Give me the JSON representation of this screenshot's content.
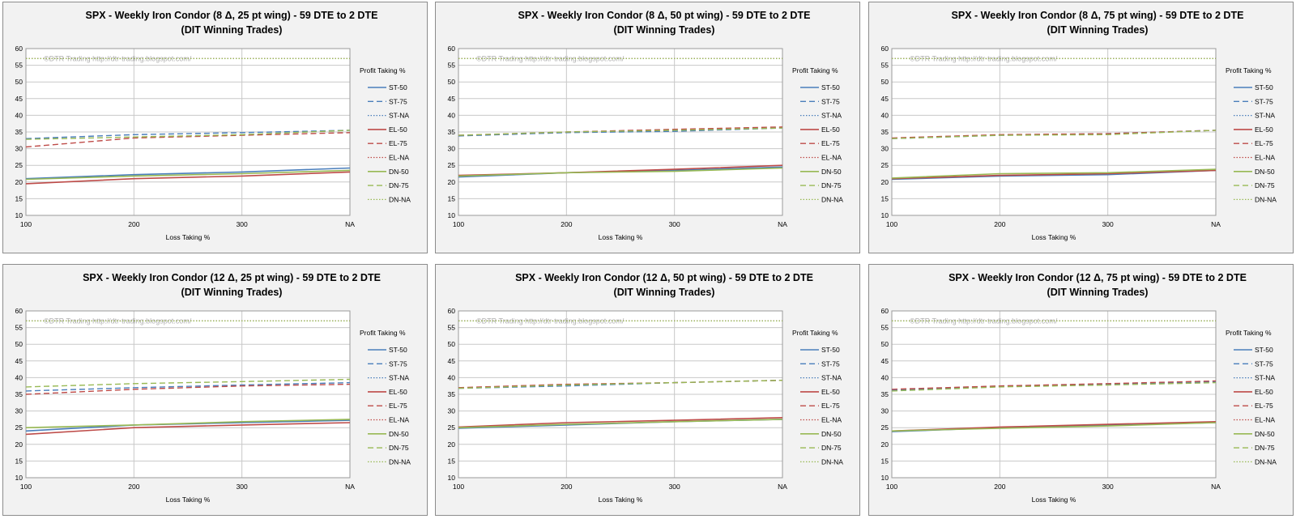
{
  "colors": {
    "ST": "#4a7ebb",
    "EL": "#be4b48",
    "DN": "#98b954",
    "max_line": "#7f7f35",
    "grid": "#c8c8c8",
    "plot_bg": "#ffffff",
    "panel_bg": "#f2f2f2"
  },
  "common": {
    "watermark": "©DTR Trading     http://dtr-trading.blogspot.com/",
    "subtitle": "(DIT Winning Trades)",
    "xlabel": "Loss Taking %",
    "legend_title": "Profit Taking %",
    "categories": [
      "100",
      "200",
      "300",
      "NA"
    ],
    "yticks": [
      10,
      15,
      20,
      25,
      30,
      35,
      40,
      45,
      50,
      55,
      60
    ],
    "ylim": [
      10,
      60
    ]
  },
  "chart_data": [
    {
      "type": "line",
      "title": "SPX - Weekly Iron Condor (8 Δ, 25 pt wing) - 59 DTE to 2 DTE",
      "subtitle": "(DIT Winning Trades)",
      "xlabel": "Loss Taking %",
      "ylabel": "",
      "categories": [
        "100",
        "200",
        "300",
        "NA"
      ],
      "ylim": [
        10,
        60
      ],
      "legend": {
        "title": "Profit Taking %",
        "position": "right"
      },
      "series": [
        {
          "name": "ST-50",
          "values": [
            21.0,
            22.2,
            23.0,
            24.2
          ]
        },
        {
          "name": "ST-75",
          "values": [
            33.0,
            34.2,
            34.8,
            35.5
          ]
        },
        {
          "name": "ST-NA",
          "values": [
            57.0,
            57.0,
            57.0,
            57.0
          ]
        },
        {
          "name": "EL-50",
          "values": [
            19.5,
            21.0,
            21.8,
            23.0
          ]
        },
        {
          "name": "EL-75",
          "values": [
            30.5,
            33.2,
            34.0,
            34.8
          ]
        },
        {
          "name": "EL-NA",
          "values": [
            57.0,
            57.0,
            57.0,
            57.0
          ]
        },
        {
          "name": "DN-50",
          "values": [
            20.8,
            21.8,
            22.5,
            23.5
          ]
        },
        {
          "name": "DN-75",
          "values": [
            32.8,
            33.5,
            34.2,
            35.5
          ]
        },
        {
          "name": "DN-NA",
          "values": [
            57.0,
            57.0,
            57.0,
            57.0
          ]
        }
      ]
    },
    {
      "type": "line",
      "title": "SPX - Weekly Iron Condor (8 Δ, 50 pt wing) - 59 DTE to 2 DTE",
      "subtitle": "(DIT Winning Trades)",
      "xlabel": "Loss Taking %",
      "ylabel": "",
      "categories": [
        "100",
        "200",
        "300",
        "NA"
      ],
      "ylim": [
        10,
        60
      ],
      "legend": {
        "title": "Profit Taking %",
        "position": "right"
      },
      "series": [
        {
          "name": "ST-50",
          "values": [
            21.5,
            22.8,
            23.5,
            24.5
          ]
        },
        {
          "name": "ST-75",
          "values": [
            33.8,
            34.8,
            35.2,
            36.2
          ]
        },
        {
          "name": "ST-NA",
          "values": [
            57.0,
            57.0,
            57.0,
            57.0
          ]
        },
        {
          "name": "EL-50",
          "values": [
            22.0,
            22.8,
            23.8,
            25.0
          ]
        },
        {
          "name": "EL-75",
          "values": [
            34.0,
            35.0,
            35.8,
            36.5
          ]
        },
        {
          "name": "EL-NA",
          "values": [
            57.0,
            57.0,
            57.0,
            57.0
          ]
        },
        {
          "name": "DN-50",
          "values": [
            21.8,
            22.8,
            23.2,
            24.2
          ]
        },
        {
          "name": "DN-75",
          "values": [
            34.0,
            35.0,
            35.5,
            36.2
          ]
        },
        {
          "name": "DN-NA",
          "values": [
            57.0,
            57.0,
            57.0,
            57.0
          ]
        }
      ]
    },
    {
      "type": "line",
      "title": "SPX - Weekly Iron Condor (8 Δ, 75 pt wing) - 59 DTE to 2 DTE",
      "subtitle": "(DIT Winning Trades)",
      "xlabel": "Loss Taking %",
      "ylabel": "",
      "categories": [
        "100",
        "200",
        "300",
        "NA"
      ],
      "ylim": [
        10,
        60
      ],
      "legend": {
        "title": "Profit Taking %",
        "position": "right"
      },
      "series": [
        {
          "name": "ST-50",
          "values": [
            20.8,
            21.8,
            22.2,
            23.5
          ]
        },
        {
          "name": "ST-75",
          "values": [
            33.0,
            34.0,
            34.5,
            35.5
          ]
        },
        {
          "name": "ST-NA",
          "values": [
            57.0,
            57.0,
            57.0,
            57.0
          ]
        },
        {
          "name": "EL-50",
          "values": [
            21.0,
            22.0,
            22.5,
            23.5
          ]
        },
        {
          "name": "EL-75",
          "values": [
            33.2,
            34.2,
            34.5,
            35.5
          ]
        },
        {
          "name": "EL-NA",
          "values": [
            57.0,
            57.0,
            57.0,
            57.0
          ]
        },
        {
          "name": "DN-50",
          "values": [
            21.2,
            22.5,
            22.8,
            23.8
          ]
        },
        {
          "name": "DN-75",
          "values": [
            33.0,
            34.0,
            34.2,
            35.5
          ]
        },
        {
          "name": "DN-NA",
          "values": [
            57.0,
            57.0,
            57.0,
            57.0
          ]
        }
      ]
    },
    {
      "type": "line",
      "title": "SPX - Weekly Iron Condor (12 Δ, 25 pt wing) - 59 DTE to 2 DTE",
      "subtitle": "(DIT Winning Trades)",
      "xlabel": "Loss Taking %",
      "ylabel": "",
      "categories": [
        "100",
        "200",
        "300",
        "NA"
      ],
      "ylim": [
        10,
        60
      ],
      "legend": {
        "title": "Profit Taking %",
        "position": "right"
      },
      "series": [
        {
          "name": "ST-50",
          "values": [
            24.0,
            25.8,
            26.5,
            27.2
          ]
        },
        {
          "name": "ST-75",
          "values": [
            36.0,
            37.0,
            37.8,
            38.5
          ]
        },
        {
          "name": "ST-NA",
          "values": [
            57.0,
            57.0,
            57.0,
            57.0
          ]
        },
        {
          "name": "EL-50",
          "values": [
            23.0,
            25.0,
            25.8,
            26.5
          ]
        },
        {
          "name": "EL-75",
          "values": [
            35.0,
            36.5,
            37.5,
            38.0
          ]
        },
        {
          "name": "EL-NA",
          "values": [
            57.0,
            57.0,
            57.0,
            57.0
          ]
        },
        {
          "name": "DN-50",
          "values": [
            25.0,
            25.8,
            26.8,
            27.5
          ]
        },
        {
          "name": "DN-75",
          "values": [
            37.2,
            38.2,
            38.8,
            39.5
          ]
        },
        {
          "name": "DN-NA",
          "values": [
            57.0,
            57.0,
            57.0,
            57.0
          ]
        }
      ]
    },
    {
      "type": "line",
      "title": "SPX - Weekly Iron Condor (12 Δ, 50 pt wing) - 59 DTE to 2 DTE",
      "subtitle": "(DIT Winning Trades)",
      "xlabel": "Loss Taking %",
      "ylabel": "",
      "categories": [
        "100",
        "200",
        "300",
        "NA"
      ],
      "ylim": [
        10,
        60
      ],
      "legend": {
        "title": "Profit Taking %",
        "position": "right"
      },
      "series": [
        {
          "name": "ST-50",
          "values": [
            24.8,
            25.8,
            26.8,
            27.5
          ]
        },
        {
          "name": "ST-75",
          "values": [
            36.8,
            37.5,
            38.5,
            39.2
          ]
        },
        {
          "name": "ST-NA",
          "values": [
            57.0,
            57.0,
            57.0,
            57.0
          ]
        },
        {
          "name": "EL-50",
          "values": [
            25.2,
            26.5,
            27.2,
            28.0
          ]
        },
        {
          "name": "EL-75",
          "values": [
            37.0,
            38.0,
            38.5,
            39.2
          ]
        },
        {
          "name": "EL-NA",
          "values": [
            57.0,
            57.0,
            57.0,
            57.0
          ]
        },
        {
          "name": "DN-50",
          "values": [
            25.0,
            26.0,
            26.8,
            27.5
          ]
        },
        {
          "name": "DN-75",
          "values": [
            36.8,
            37.8,
            38.5,
            39.2
          ]
        },
        {
          "name": "DN-NA",
          "values": [
            57.0,
            57.0,
            57.0,
            57.0
          ]
        }
      ]
    },
    {
      "type": "line",
      "title": "SPX - Weekly Iron Condor (12 Δ, 75 pt wing) - 59 DTE to 2 DTE",
      "subtitle": "(DIT Winning Trades)",
      "xlabel": "Loss Taking %",
      "ylabel": "",
      "categories": [
        "100",
        "200",
        "300",
        "NA"
      ],
      "ylim": [
        10,
        60
      ],
      "legend": {
        "title": "Profit Taking %",
        "position": "right"
      },
      "series": [
        {
          "name": "ST-50",
          "values": [
            23.8,
            25.0,
            25.8,
            26.5
          ]
        },
        {
          "name": "ST-75",
          "values": [
            36.2,
            37.5,
            38.0,
            38.8
          ]
        },
        {
          "name": "ST-NA",
          "values": [
            57.0,
            57.0,
            57.0,
            57.0
          ]
        },
        {
          "name": "EL-50",
          "values": [
            24.0,
            25.2,
            26.0,
            26.8
          ]
        },
        {
          "name": "EL-75",
          "values": [
            36.5,
            37.5,
            38.2,
            39.0
          ]
        },
        {
          "name": "EL-NA",
          "values": [
            57.0,
            57.0,
            57.0,
            57.0
          ]
        },
        {
          "name": "DN-50",
          "values": [
            24.0,
            24.8,
            25.5,
            26.5
          ]
        },
        {
          "name": "DN-75",
          "values": [
            36.0,
            37.2,
            37.8,
            38.5
          ]
        },
        {
          "name": "DN-NA",
          "values": [
            57.0,
            57.0,
            57.0,
            57.0
          ]
        }
      ]
    }
  ]
}
